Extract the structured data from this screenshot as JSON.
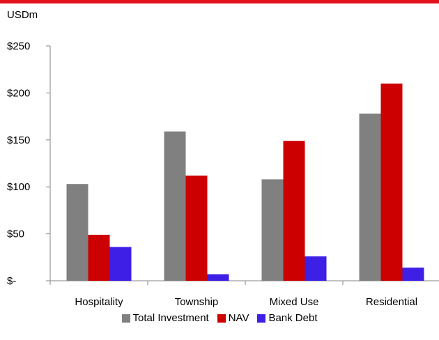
{
  "colors": {
    "top_band": "#e3121d"
  },
  "chart_data": {
    "type": "bar",
    "unit_label": "USDm",
    "categories": [
      "Hospitality",
      "Township",
      "Mixed Use",
      "Residential"
    ],
    "series": [
      {
        "name": "Total Investment",
        "color": "#808080",
        "values": [
          103,
          159,
          108,
          178
        ]
      },
      {
        "name": "NAV",
        "color": "#cc0000",
        "values": [
          49,
          112,
          149,
          210
        ]
      },
      {
        "name": "Bank Debt",
        "color": "#3d1fe6",
        "values": [
          36,
          7,
          26,
          14
        ]
      }
    ],
    "ylim": [
      0,
      250
    ],
    "yticks": [
      {
        "value": 0,
        "label": "$-"
      },
      {
        "value": 50,
        "label": "$50"
      },
      {
        "value": 100,
        "label": "$100"
      },
      {
        "value": 150,
        "label": "$150"
      },
      {
        "value": 200,
        "label": "$200"
      },
      {
        "value": 250,
        "label": "$250"
      }
    ],
    "grid": false,
    "legend_position": "bottom"
  }
}
